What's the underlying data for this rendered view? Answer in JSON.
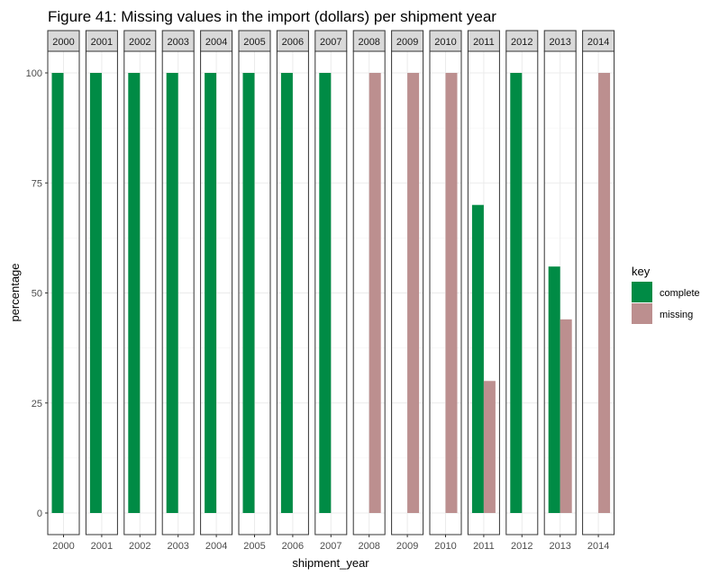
{
  "chart_data": {
    "type": "bar",
    "title": "Figure 41: Missing values in the import (dollars) per shipment year",
    "xlabel": "shipment_year",
    "ylabel": "percentage",
    "ylim": [
      0,
      100
    ],
    "yticks": [
      0,
      25,
      50,
      75,
      100
    ],
    "facets": [
      "2000",
      "2001",
      "2002",
      "2003",
      "2004",
      "2005",
      "2006",
      "2007",
      "2008",
      "2009",
      "2010",
      "2011",
      "2012",
      "2013",
      "2014"
    ],
    "legend": {
      "title": "key",
      "position": "right"
    },
    "grid": true,
    "series": [
      {
        "name": "complete",
        "color": "#008B45",
        "values": [
          100,
          100,
          100,
          100,
          100,
          100,
          100,
          100,
          0,
          0,
          0,
          70,
          100,
          56,
          0
        ]
      },
      {
        "name": "missing",
        "color": "#BC8F8F",
        "values": [
          0,
          0,
          0,
          0,
          0,
          0,
          0,
          0,
          100,
          100,
          100,
          30,
          0,
          44,
          100
        ]
      }
    ]
  }
}
